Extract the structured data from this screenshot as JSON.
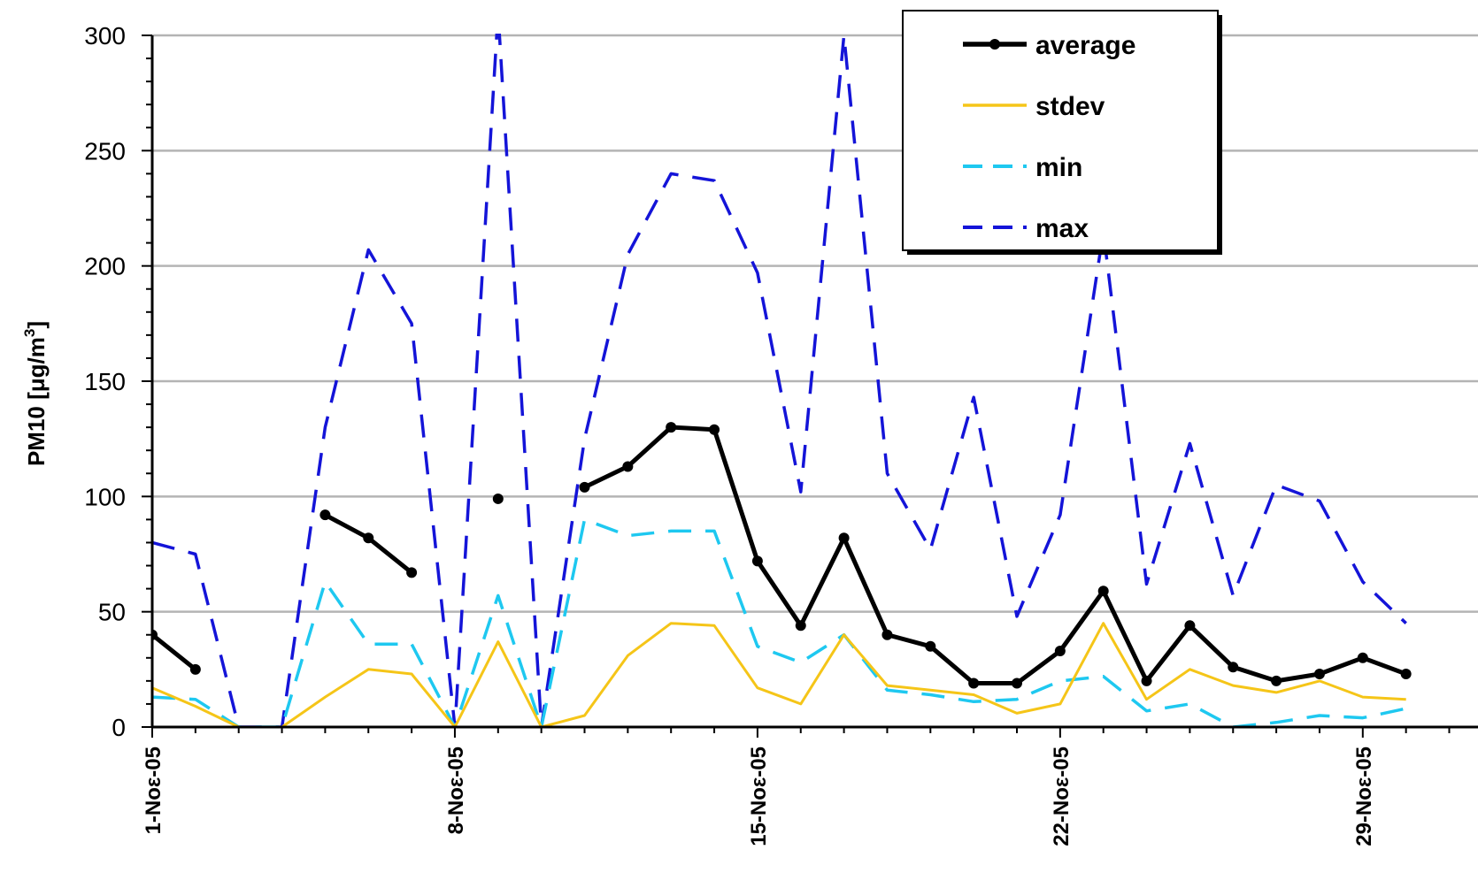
{
  "chart_data": {
    "type": "line",
    "ylabel_main": "PM10 [μg/m",
    "ylabel_sup": "3",
    "ylabel_end": "]",
    "ylim": [
      0,
      300
    ],
    "y_ticks": [
      0,
      50,
      100,
      150,
      200,
      250,
      300
    ],
    "x_range": [
      1,
      31
    ],
    "x": [
      1,
      2,
      3,
      4,
      5,
      6,
      7,
      8,
      9,
      10,
      11,
      12,
      13,
      14,
      15,
      16,
      17,
      18,
      19,
      20,
      21,
      22,
      23,
      24,
      25,
      26,
      27,
      28,
      29,
      30
    ],
    "x_tick_positions": [
      1,
      8,
      15,
      22,
      29
    ],
    "x_tick_labels": [
      "1-Noε-05",
      "8-Noε-05",
      "15-Noε-05",
      "22-Noε-05",
      "29-Noε-05"
    ],
    "grid": "horizontal",
    "legend_placement": "top-right",
    "series": [
      {
        "name": "average",
        "color": "#000000",
        "style": "solid-markers",
        "values": [
          40,
          25,
          null,
          null,
          92,
          82,
          67,
          null,
          99,
          null,
          104,
          113,
          130,
          129,
          72,
          44,
          82,
          40,
          35,
          19,
          19,
          33,
          59,
          20,
          44,
          26,
          20,
          23,
          30,
          23
        ]
      },
      {
        "name": "stdev",
        "color": "#F5C518",
        "style": "solid",
        "values": [
          17,
          9,
          0,
          0,
          13,
          25,
          23,
          0,
          37,
          0,
          5,
          31,
          45,
          44,
          17,
          10,
          40,
          18,
          16,
          14,
          6,
          10,
          45,
          12,
          25,
          18,
          15,
          20,
          13,
          12
        ]
      },
      {
        "name": "min",
        "color": "#1EC8F0",
        "style": "dashed",
        "values": [
          13,
          12,
          0,
          0,
          63,
          36,
          36,
          0,
          57,
          0,
          90,
          83,
          85,
          85,
          35,
          28,
          40,
          16,
          14,
          11,
          12,
          20,
          22,
          7,
          10,
          0,
          2,
          5,
          4,
          8
        ]
      },
      {
        "name": "max",
        "color": "#1414D8",
        "style": "dashed",
        "values": [
          80,
          75,
          0,
          0,
          130,
          207,
          175,
          0,
          310,
          0,
          125,
          205,
          240,
          237,
          197,
          102,
          300,
          110,
          77,
          143,
          48,
          92,
          215,
          62,
          123,
          57,
          105,
          98,
          63,
          45
        ]
      }
    ]
  }
}
